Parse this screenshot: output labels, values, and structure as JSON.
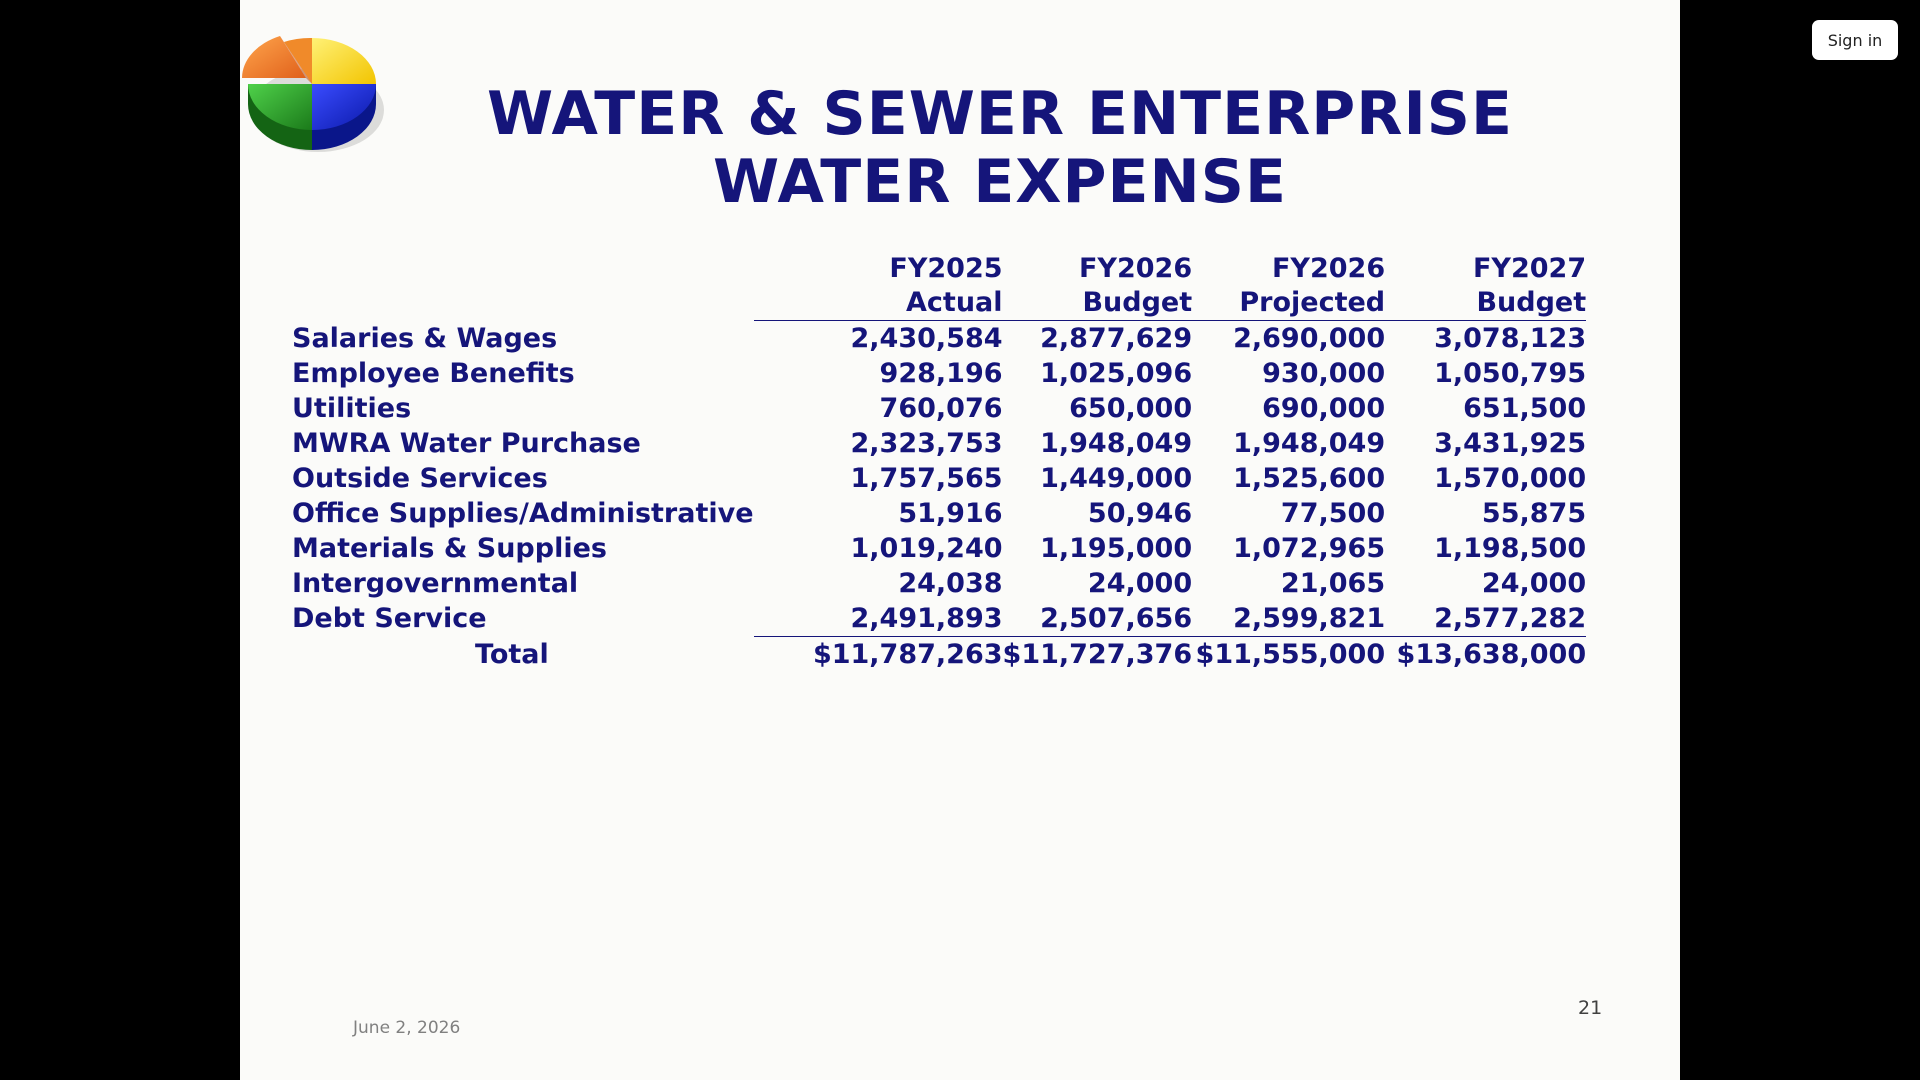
{
  "viewer": {
    "sign_in_label": "Sign in"
  },
  "slide": {
    "title_line1": "WATER & SEWER ENTERPRISE",
    "title_line2": "WATER EXPENSE",
    "logo_icon": "3d-pie-chart-icon",
    "colors": {
      "text": "#15157a",
      "background": "#fbfbf9"
    },
    "table": {
      "columns": [
        {
          "line1": "FY2025",
          "line2": "Actual"
        },
        {
          "line1": "FY2026",
          "line2": "Budget"
        },
        {
          "line1": "FY2026",
          "line2": "Projected"
        },
        {
          "line1": "FY2027",
          "line2": "Budget"
        }
      ],
      "rows": [
        {
          "label": "Salaries & Wages",
          "values": [
            "2,430,584",
            "2,877,629",
            "2,690,000",
            "3,078,123"
          ]
        },
        {
          "label": "Employee Benefits",
          "values": [
            "928,196",
            "1,025,096",
            "930,000",
            "1,050,795"
          ]
        },
        {
          "label": "Utilities",
          "values": [
            "760,076",
            "650,000",
            "690,000",
            "651,500"
          ]
        },
        {
          "label": "MWRA Water Purchase",
          "values": [
            "2,323,753",
            "1,948,049",
            "1,948,049",
            "3,431,925"
          ]
        },
        {
          "label": "Outside Services",
          "values": [
            "1,757,565",
            "1,449,000",
            "1,525,600",
            "1,570,000"
          ]
        },
        {
          "label": "Office Supplies/Administrative",
          "values": [
            "51,916",
            "50,946",
            "77,500",
            "55,875"
          ]
        },
        {
          "label": "Materials & Supplies",
          "values": [
            "1,019,240",
            "1,195,000",
            "1,072,965",
            "1,198,500"
          ]
        },
        {
          "label": "Intergovernmental",
          "values": [
            "24,038",
            "24,000",
            "21,065",
            "24,000"
          ]
        },
        {
          "label": "Debt Service",
          "values": [
            "2,491,893",
            "2,507,656",
            "2,599,821",
            "2,577,282"
          ]
        }
      ],
      "total": {
        "label": "Total",
        "values": [
          "$11,787,263",
          "$11,727,376",
          "$11,555,000",
          "$13,638,000"
        ]
      }
    },
    "footer_date": "June 2, 2026",
    "page_number": "21"
  }
}
